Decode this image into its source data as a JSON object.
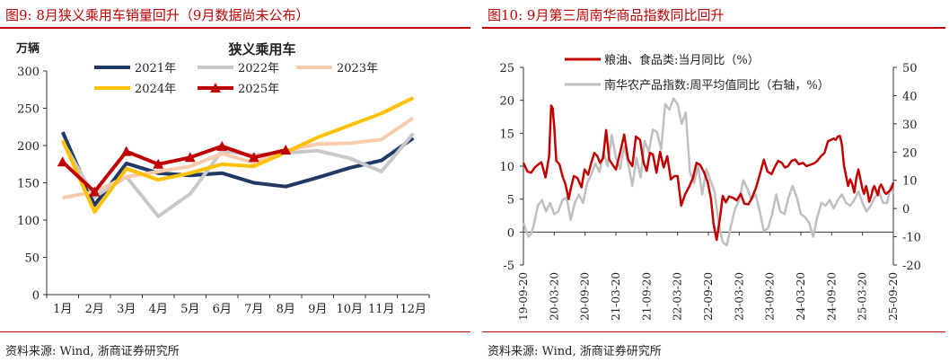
{
  "left": {
    "title": "图9:  8月狭义乘用车销量回升（9月数据尚未公布）",
    "source": "资料来源:  Wind, 浙商证券研究所",
    "chart_data": {
      "type": "line",
      "title": "狭义乘用车",
      "ylabel": "万辆",
      "categories": [
        "1月",
        "2月",
        "3月",
        "4月",
        "5月",
        "6月",
        "7月",
        "8月",
        "9月",
        "10月",
        "11月",
        "12月"
      ],
      "ylim": [
        0,
        300
      ],
      "yticks": [
        0,
        50,
        100,
        150,
        200,
        250,
        300
      ],
      "grid": false,
      "legend_position": "top",
      "series": [
        {
          "name": "2021年",
          "color": "#1f3864",
          "marker": "none",
          "values": [
            218,
            120,
            176,
            163,
            160,
            163,
            150,
            145,
            157,
            170,
            180,
            210
          ]
        },
        {
          "name": "2022年",
          "color": "#c8c8c8",
          "marker": "none",
          "values": [
            205,
            131,
            158,
            105,
            135,
            193,
            187,
            190,
            193,
            183,
            165,
            216
          ]
        },
        {
          "name": "2023年",
          "color": "#f8cbad",
          "marker": "none",
          "values": [
            130,
            138,
            158,
            165,
            172,
            189,
            177,
            193,
            202,
            203,
            208,
            237
          ]
        },
        {
          "name": "2024年",
          "color": "#ffc000",
          "marker": "none",
          "values": [
            207,
            111,
            169,
            154,
            163,
            175,
            172,
            191,
            211,
            227,
            243,
            264
          ]
        },
        {
          "name": "2025年",
          "color": "#c00000",
          "marker": "triangle",
          "values": [
            178,
            138,
            192,
            175,
            184,
            199,
            184,
            194,
            null,
            null,
            null,
            null
          ]
        }
      ]
    }
  },
  "right": {
    "title": "图10:   9月第三周南华商品指数同比回升",
    "source": "资料来源:  Wind, 浙商证券研究所",
    "chart_data": {
      "type": "line",
      "dual_axis": true,
      "x_labels": [
        "19-09-20",
        "20-03-20",
        "20-09-20",
        "21-03-20",
        "21-09-20",
        "22-03-20",
        "22-09-20",
        "23-03-20",
        "23-09-20",
        "24-03-20",
        "24-09-20",
        "25-03-20",
        "25-09-20"
      ],
      "ylim_left": [
        -5,
        25
      ],
      "yticks_left": [
        -5,
        0,
        5,
        10,
        15,
        20,
        25
      ],
      "ylim_right": [
        -20,
        50
      ],
      "yticks_right": [
        -20,
        -10,
        0,
        10,
        20,
        30,
        40,
        50
      ],
      "legend_position": "top",
      "series": [
        {
          "name": "粮油、食品类:当月同比（%）",
          "axis": "left",
          "color": "#c00000",
          "x": [
            0,
            0.8,
            1.5,
            2.2,
            2.8,
            3.5,
            4.3,
            5.0,
            5.4,
            5.7,
            6.0,
            6.4,
            7.0,
            7.6,
            8.2,
            8.8,
            9.2,
            9.8,
            10.5,
            11.3,
            11.9,
            12.6,
            13.2,
            13.8,
            14.4,
            14.9,
            15.5,
            16.1,
            16.7,
            17.3,
            18.0,
            18.8,
            19.6,
            20.4,
            21.2,
            21.9,
            22.7,
            23.4,
            24.0,
            24.6,
            25.2,
            25.9,
            26.6,
            27.3,
            28.0,
            28.7,
            29.4,
            30.0,
            30.7,
            31.5,
            32.2,
            33.0,
            33.7,
            34.4,
            35.2,
            35.9,
            36.5,
            37.0,
            37.6,
            38.2,
            38.8,
            39.4,
            40.0,
            40.8,
            41.5,
            42.3,
            43.0,
            43.8,
            44.5,
            45.3,
            46.1,
            46.8,
            47.5,
            48.3,
            49.0,
            49.6,
            50.3,
            50.9,
            51.5,
            52.2,
            52.9,
            53.6,
            54.4,
            55.1,
            55.8,
            56.5,
            57.2,
            57.9,
            58.6,
            59.3,
            59.9,
            60.4,
            60.8,
            61.2,
            61.6,
            62.0,
            62.4,
            62.8,
            63.2,
            63.6,
            64.0,
            64.4,
            64.8,
            65.2,
            65.6,
            66.0,
            66.3,
            66.7,
            67.0,
            67.3,
            67.7,
            68.0,
            68.3,
            68.6,
            69.0,
            69.3,
            69.6,
            70.0,
            70.3,
            70.6,
            70.9,
            71.2,
            71.5,
            71.8,
            72.0
          ],
          "y": [
            10.5,
            9.2,
            9.0,
            9.8,
            10.2,
            10.6,
            8.3,
            11.5,
            19.2,
            18.8,
            16.0,
            10.8,
            10.3,
            8.5,
            7.2,
            5.0,
            6.5,
            8.5,
            8.2,
            6.8,
            9.5,
            8.7,
            10.5,
            12.0,
            11.5,
            10.5,
            11.2,
            15.5,
            11.0,
            10.3,
            9.5,
            12.0,
            14.8,
            11.0,
            10.0,
            14.5,
            14.0,
            10.5,
            9.3,
            12.0,
            11.8,
            9.0,
            12.2,
            9.8,
            11.5,
            8.0,
            8.5,
            8.5,
            4.0,
            5.8,
            6.8,
            8.2,
            10.5,
            10.2,
            9.0,
            7.5,
            5.0,
            1.3,
            -1.2,
            1.8,
            5.5,
            4.5,
            5.4,
            5.2,
            4.8,
            5.8,
            4.3,
            4.2,
            5.2,
            6.8,
            9.0,
            11.0,
            9.2,
            8.8,
            10.0,
            10.8,
            10.5,
            9.8,
            10.0,
            10.8,
            11.0,
            10.3,
            10.5,
            10.0,
            10.2,
            10.4,
            10.8,
            11.5,
            12.0,
            13.8,
            14.0,
            14.2,
            14.0,
            14.5,
            14.6,
            13.2,
            10.0,
            8.5,
            7.0,
            8.0,
            7.3,
            6.0,
            8.2,
            9.5,
            8.0,
            6.5,
            5.8,
            7.0,
            6.0,
            4.6,
            5.5,
            6.5,
            7.0,
            6.4,
            5.6,
            6.8,
            7.2,
            6.6,
            6.0,
            5.8,
            6.0,
            6.2,
            6.5,
            7.0,
            7.5
          ]
        },
        {
          "name": "南华农产品指数:周平均值同比（右轴，%）",
          "axis": "right",
          "color": "#bfbfbf",
          "x": [
            0,
            0.5,
            1.0,
            1.5,
            2.0,
            2.8,
            3.6,
            4.4,
            5.2,
            6.0,
            6.8,
            7.6,
            8.4,
            9.2,
            10.0,
            10.8,
            11.6,
            12.4,
            13.2,
            14.0,
            14.8,
            15.6,
            16.4,
            17.2,
            18.0,
            18.8,
            19.6,
            20.4,
            21.2,
            22.0,
            22.8,
            23.6,
            24.4,
            25.2,
            26.0,
            26.8,
            27.6,
            28.4,
            29.2,
            30.0,
            30.8,
            31.6,
            32.4,
            33.2,
            34.0,
            34.8,
            35.6,
            36.4,
            37.2,
            38.0,
            38.8,
            39.6,
            40.4,
            41.2,
            42.0,
            42.8,
            43.6,
            44.4,
            45.2,
            46.0,
            46.8,
            47.6,
            48.4,
            49.2,
            50.0,
            50.8,
            51.6,
            52.4,
            53.2,
            54.0,
            54.8,
            55.6,
            56.4,
            57.2,
            58.0,
            58.8,
            59.6,
            60.4,
            61.2,
            62.0,
            62.8,
            63.6,
            64.4,
            65.2,
            66.0,
            66.8,
            67.6,
            68.4,
            69.2,
            70.0,
            70.8,
            71.5,
            72.0
          ],
          "y": [
            -5,
            -8,
            -10,
            -9,
            -6,
            1,
            3,
            -1,
            2,
            -2,
            -1,
            3,
            4,
            -4,
            2,
            5,
            2,
            9,
            12,
            16,
            13,
            20,
            15,
            26,
            18,
            14,
            22,
            16,
            8,
            18,
            11,
            24,
            20,
            28,
            27,
            21,
            37,
            35,
            39,
            37,
            30,
            34,
            13,
            9,
            15,
            5,
            14,
            10,
            6,
            -5,
            -12,
            -13,
            -6,
            0,
            3,
            10,
            7,
            3,
            5,
            -1,
            -8,
            -7,
            -2,
            5,
            -1,
            -2,
            4,
            8,
            4,
            -2,
            -3,
            -5,
            -10,
            -3,
            2,
            1,
            3,
            0,
            3,
            5,
            2,
            1,
            3,
            6,
            2,
            -1,
            1,
            4,
            6,
            2,
            2,
            8,
            5
          ]
        }
      ]
    }
  }
}
